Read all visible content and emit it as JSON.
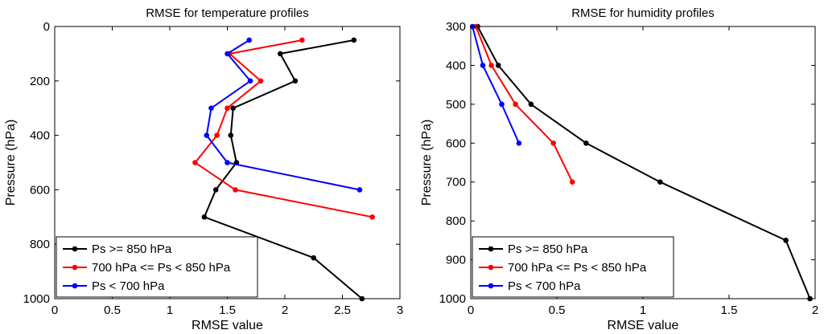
{
  "chart_data": [
    {
      "type": "line",
      "title": "RMSE for temperature profiles",
      "xlabel": "RMSE value",
      "ylabel": "Pressure (hPa)",
      "xlim": [
        0,
        3
      ],
      "ylim": [
        0,
        1000
      ],
      "y_inverted": true,
      "xticks": [
        "0",
        "0.5",
        "1",
        "1.5",
        "2",
        "2.5",
        "3"
      ],
      "xtick_values": [
        0,
        0.5,
        1,
        1.5,
        2,
        2.5,
        3
      ],
      "yticks": [
        "0",
        "200",
        "400",
        "600",
        "800",
        "1000"
      ],
      "ytick_values": [
        0,
        200,
        400,
        600,
        800,
        1000
      ],
      "legend_position": "bottom-left",
      "series": [
        {
          "name": "Ps >= 850 hPa",
          "color": "#000000",
          "points": [
            [
              2.6,
              50
            ],
            [
              1.96,
              100
            ],
            [
              2.09,
              200
            ],
            [
              1.55,
              300
            ],
            [
              1.53,
              400
            ],
            [
              1.58,
              500
            ],
            [
              1.4,
              600
            ],
            [
              1.3,
              700
            ],
            [
              2.25,
              850
            ],
            [
              2.67,
              1000
            ]
          ]
        },
        {
          "name": "700 hPa <= Ps < 850 hPa",
          "color": "#ff0000",
          "points": [
            [
              2.15,
              50
            ],
            [
              1.52,
              100
            ],
            [
              1.79,
              200
            ],
            [
              1.5,
              300
            ],
            [
              1.41,
              400
            ],
            [
              1.22,
              500
            ],
            [
              1.57,
              600
            ],
            [
              2.76,
              700
            ]
          ]
        },
        {
          "name": "Ps < 700 hPa",
          "color": "#0000ff",
          "points": [
            [
              1.69,
              50
            ],
            [
              1.5,
              100
            ],
            [
              1.7,
              200
            ],
            [
              1.36,
              300
            ],
            [
              1.32,
              400
            ],
            [
              1.5,
              500
            ],
            [
              2.65,
              600
            ]
          ]
        }
      ]
    },
    {
      "type": "line",
      "title": "RMSE for humidity profiles",
      "xlabel": "RMSE value",
      "ylabel": "Pressure (hPa)",
      "xlim": [
        0,
        2
      ],
      "ylim": [
        300,
        1000
      ],
      "y_inverted": true,
      "xticks": [
        "0",
        "0.5",
        "1",
        "1.5",
        "2"
      ],
      "xtick_values": [
        0,
        0.5,
        1,
        1.5,
        2
      ],
      "yticks": [
        "300",
        "400",
        "500",
        "600",
        "700",
        "800",
        "900",
        "1000"
      ],
      "ytick_values": [
        300,
        400,
        500,
        600,
        700,
        800,
        900,
        1000
      ],
      "legend_position": "bottom-left",
      "series": [
        {
          "name": "Ps >= 850 hPa",
          "color": "#000000",
          "points": [
            [
              0.04,
              300
            ],
            [
              0.16,
              400
            ],
            [
              0.35,
              500
            ],
            [
              0.67,
              600
            ],
            [
              1.1,
              700
            ],
            [
              1.83,
              850
            ],
            [
              1.97,
              1000
            ]
          ]
        },
        {
          "name": "700 hPa <= Ps < 850 hPa",
          "color": "#ff0000",
          "points": [
            [
              0.03,
              300
            ],
            [
              0.12,
              400
            ],
            [
              0.26,
              500
            ],
            [
              0.48,
              600
            ],
            [
              0.59,
              700
            ]
          ]
        },
        {
          "name": "Ps < 700 hPa",
          "color": "#0000ff",
          "points": [
            [
              0.01,
              300
            ],
            [
              0.07,
              400
            ],
            [
              0.18,
              500
            ],
            [
              0.28,
              600
            ]
          ]
        }
      ]
    }
  ]
}
